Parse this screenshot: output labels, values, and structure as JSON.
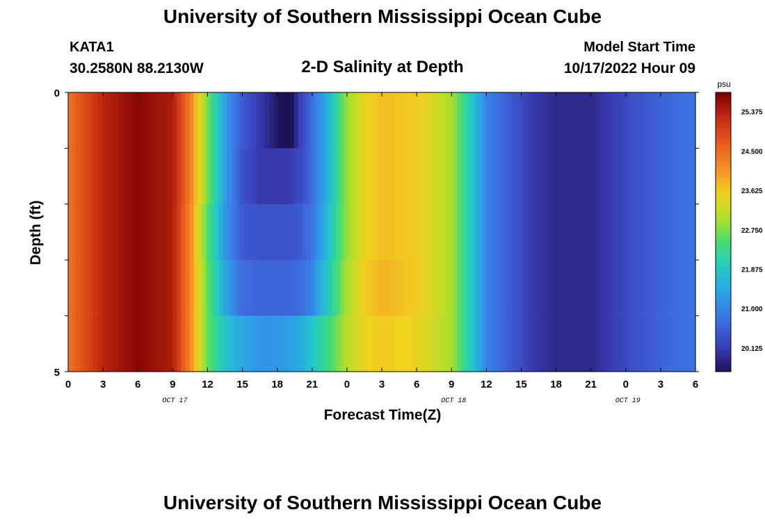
{
  "header": {
    "title": "University of Southern Mississippi Ocean Cube",
    "station": "KATA1",
    "coords": "30.2580N  88.2130W",
    "chart_title": "2-D Salinity at Depth",
    "start_label": "Model Start Time",
    "start_value": "10/17/2022 Hour 09"
  },
  "footer": {
    "title": "University of Southern Mississippi Ocean Cube"
  },
  "colors": {
    "ramp": [
      "#1e1257",
      "#3a3fb8",
      "#3d6fe0",
      "#2e9ee8",
      "#22c8c8",
      "#3fdc7a",
      "#a8e02c",
      "#f0d21e",
      "#f4902a",
      "#e85a1c",
      "#c42a10",
      "#7a0000"
    ]
  },
  "chart_data": {
    "type": "heatmap",
    "xlabel": "Forecast Time(Z)",
    "ylabel": "Depth (ft)",
    "unit": "psu",
    "x_hours": [
      0,
      3,
      6,
      9,
      12,
      15,
      18,
      21,
      24,
      27,
      30,
      33,
      36,
      39,
      42,
      45,
      48,
      51,
      54
    ],
    "x_tick_labels": [
      "0",
      "3",
      "6",
      "9",
      "12",
      "15",
      "18",
      "21",
      "0",
      "3",
      "6",
      "9",
      "12",
      "15",
      "18",
      "21",
      "0",
      "3",
      "6"
    ],
    "date_labels": [
      {
        "hour": 9,
        "label": "OCT 17"
      },
      {
        "hour": 33,
        "label": "OCT 18"
      },
      {
        "hour": 48,
        "label": "OCT 19"
      }
    ],
    "y_ticks": [
      0,
      5
    ],
    "ylim": [
      5,
      0
    ],
    "xlim": [
      0,
      54
    ],
    "colorbar": {
      "range": [
        19.6,
        25.8
      ],
      "tick_values": [
        20.125,
        21.0,
        21.875,
        22.75,
        23.625,
        24.5,
        25.375
      ],
      "tick_labels": [
        "20.125",
        "21.000",
        "21.875",
        "22.750",
        "23.625",
        "24.500",
        "25.375"
      ]
    },
    "depth_rows": [
      0,
      1,
      2,
      3,
      4,
      5
    ],
    "hours": [
      0,
      3,
      6,
      9,
      10.5,
      12,
      13.5,
      15,
      16.5,
      18,
      19,
      20,
      21,
      22.5,
      24,
      25.5,
      27,
      30,
      33,
      34.5,
      36,
      38,
      40,
      42,
      45,
      48,
      51,
      54
    ],
    "salinity": [
      [
        24.4,
        25.3,
        25.7,
        25.4,
        24.3,
        22.7,
        21.3,
        20.5,
        20.1,
        19.7,
        19.4,
        20.2,
        20.7,
        21.7,
        22.9,
        23.5,
        23.7,
        23.6,
        23.0,
        22.0,
        21.0,
        20.5,
        20.1,
        19.9,
        19.9,
        20.3,
        20.6,
        20.8
      ],
      [
        24.4,
        25.3,
        25.7,
        25.4,
        24.3,
        22.7,
        21.3,
        20.4,
        20.1,
        20.1,
        20.1,
        20.3,
        20.7,
        21.7,
        22.9,
        23.5,
        23.7,
        23.6,
        23.0,
        22.0,
        21.0,
        20.5,
        20.1,
        19.9,
        19.9,
        20.3,
        20.6,
        20.8
      ],
      [
        24.4,
        25.3,
        25.7,
        25.4,
        24.2,
        22.5,
        21.2,
        20.5,
        20.4,
        20.4,
        20.4,
        20.5,
        20.8,
        21.8,
        22.9,
        23.5,
        23.7,
        23.6,
        23.0,
        22.0,
        21.0,
        20.5,
        20.1,
        19.9,
        19.9,
        20.3,
        20.6,
        20.8
      ],
      [
        24.4,
        25.3,
        25.7,
        25.4,
        24.2,
        22.6,
        21.4,
        20.7,
        20.6,
        20.6,
        20.6,
        20.7,
        21.0,
        22.0,
        23.0,
        23.6,
        23.8,
        23.6,
        23.0,
        22.0,
        21.0,
        20.5,
        20.1,
        19.9,
        19.9,
        20.3,
        20.6,
        20.8
      ],
      [
        24.4,
        25.3,
        25.7,
        25.4,
        24.2,
        22.6,
        21.8,
        21.4,
        21.2,
        21.2,
        21.3,
        21.5,
        21.8,
        22.4,
        23.1,
        23.5,
        23.6,
        23.5,
        23.0,
        22.0,
        21.0,
        20.5,
        20.1,
        19.9,
        19.9,
        20.3,
        20.6,
        20.8
      ]
    ]
  }
}
